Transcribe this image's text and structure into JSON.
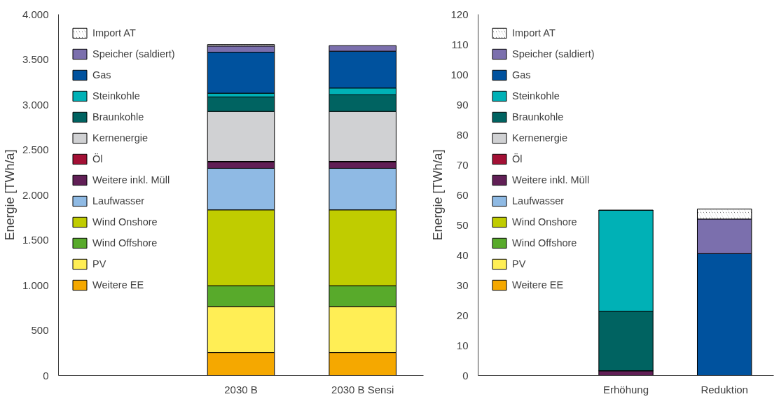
{
  "chart_data": [
    {
      "type": "bar",
      "stacked": true,
      "ylabel": "Energie [TWh/a]",
      "categories": [
        null,
        "2030 B",
        "2030 B Sensi"
      ],
      "ylim": [
        0,
        4000
      ],
      "yticks": [
        0,
        {
          "value": 500,
          "label": "500"
        },
        {
          "value": 1000,
          "label": "1.000"
        },
        {
          "value": 1500,
          "label": "1.500"
        },
        {
          "value": 2000,
          "label": "2.000"
        },
        {
          "value": 2500,
          "label": "2.500"
        },
        {
          "value": 3000,
          "label": "3.000"
        },
        {
          "value": 3500,
          "label": "3.500"
        },
        {
          "value": 4000,
          "label": "4.000"
        }
      ],
      "grid": false,
      "legend": "top left",
      "series": [
        {
          "name": "Weitere EE",
          "color": "#f5a800",
          "values": [
            null,
            255,
            255
          ]
        },
        {
          "name": "PV",
          "color": "#ffee55",
          "values": [
            null,
            510,
            510
          ]
        },
        {
          "name": "Wind Offshore",
          "color": "#58aa2b",
          "values": [
            null,
            230,
            230
          ]
        },
        {
          "name": "Wind Onshore",
          "color": "#c0cc00",
          "values": [
            null,
            840,
            840
          ]
        },
        {
          "name": "Laufwasser",
          "color": "#8fbae4",
          "values": [
            null,
            460,
            460
          ]
        },
        {
          "name": "Weitere inkl. Müll",
          "color": "#611f56",
          "values": [
            null,
            72,
            72
          ]
        },
        {
          "name": "Öl",
          "color": "#a31035",
          "values": [
            null,
            5,
            5
          ]
        },
        {
          "name": "Kernenergie",
          "color": "#d0d1d3",
          "values": [
            null,
            553,
            553
          ]
        },
        {
          "name": "Braunkohle",
          "color": "#006361",
          "values": [
            null,
            160,
            184
          ]
        },
        {
          "name": "Steinkohle",
          "color": "#00b1b6",
          "values": [
            null,
            42,
            75
          ]
        },
        {
          "name": "Gas",
          "color": "#00529e",
          "values": [
            null,
            454,
            408
          ]
        },
        {
          "name": "Speicher (saldiert)",
          "color": "#7b6fad",
          "values": [
            null,
            68,
            62
          ]
        },
        {
          "name": "Import AT",
          "color": "#000000",
          "values": [
            null,
            16,
            null
          ]
        }
      ]
    },
    {
      "type": "bar",
      "stacked": true,
      "ylabel": "Energie [TWh/a]",
      "categories": [
        null,
        "Erhöhung",
        "Reduktion"
      ],
      "ylim": [
        0,
        120
      ],
      "yticks": [
        0,
        10,
        20,
        30,
        40,
        50,
        60,
        70,
        80,
        90,
        100,
        110,
        120
      ],
      "grid": false,
      "legend": "top left",
      "series": [
        {
          "name": "Weitere EE",
          "color": "#f5a800",
          "values": [
            null,
            0,
            0
          ]
        },
        {
          "name": "PV",
          "color": "#ffee55",
          "values": [
            null,
            0,
            0
          ]
        },
        {
          "name": "Wind Offshore",
          "color": "#58aa2b",
          "values": [
            null,
            0,
            0
          ]
        },
        {
          "name": "Wind Onshore",
          "color": "#c0cc00",
          "values": [
            null,
            0,
            0
          ]
        },
        {
          "name": "Laufwasser",
          "color": "#8fbae4",
          "values": [
            null,
            0,
            0
          ]
        },
        {
          "name": "Weitere inkl. Müll",
          "color": "#611f56",
          "values": [
            null,
            1.6,
            0
          ]
        },
        {
          "name": "Öl",
          "color": "#a31035",
          "values": [
            null,
            0,
            0
          ]
        },
        {
          "name": "Kernenergie",
          "color": "#d0d1d3",
          "values": [
            null,
            0,
            0
          ]
        },
        {
          "name": "Braunkohle",
          "color": "#006361",
          "values": [
            null,
            19.8,
            0
          ]
        },
        {
          "name": "Steinkohle",
          "color": "#00b1b6",
          "values": [
            null,
            33.5,
            0
          ]
        },
        {
          "name": "Gas",
          "color": "#00529e",
          "values": [
            null,
            0,
            40.5
          ]
        },
        {
          "name": "Speicher (saldiert)",
          "color": "#7b6fad",
          "values": [
            null,
            0,
            11.5
          ]
        },
        {
          "name": "Import AT",
          "color": "#000000",
          "values": [
            null,
            0,
            3.3
          ]
        }
      ]
    }
  ]
}
